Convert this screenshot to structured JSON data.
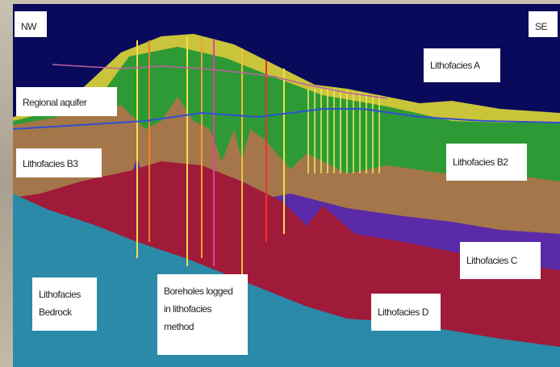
{
  "labels": {
    "nw": "NW",
    "se": "SE",
    "lithofacies_a": "Lithofacies A",
    "regional_aquifer": "Regional aquifer",
    "lithofacies_b3": "Lithofacies B3",
    "lithofacies_b2": "Lithofacies B2",
    "lithofacies_c": "Lithofacies C",
    "lithofacies_d": "Lithofacies D",
    "bedrock": [
      "Lithofacies",
      "Bedrock"
    ],
    "boreholes": [
      "Boreholes logged",
      "in lithofacies",
      "method"
    ]
  }
}
